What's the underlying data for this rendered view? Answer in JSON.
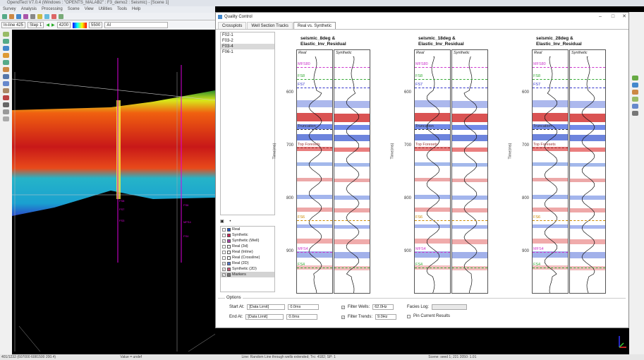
{
  "app": {
    "title": "OpendTect V7.0.4 (Windows : \"OPENTS_MALAB2\" : F3_demo2 : Seismic) - [Scene 1]",
    "menu": [
      "Survey",
      "Analysis",
      "Processing",
      "Scene",
      "View",
      "Utilities",
      "Tools",
      "Help"
    ],
    "toolbar": {
      "inline_label": "In-line 425",
      "steps_label": "Step 1",
      "range_start": "4200",
      "range_end": "5500",
      "attribute": "AI"
    }
  },
  "status": {
    "coords": "401/1232   (607000  6081500  200.4)",
    "value_label": "Value = undef",
    "mid_text": "Line: Random Line through wells extended; Trc: 4182; SP: 1",
    "right_text": "Scene: seed 1; 221  2050: 1.01"
  },
  "qc": {
    "title": "Quality Control",
    "window_buttons": {
      "minimize": "–",
      "maximize": "□",
      "close": "✕"
    },
    "tabs": [
      "Crossplots",
      "Well Section Tracks",
      "Real vs. Synthetic"
    ],
    "active_tab": 2,
    "wells": [
      {
        "name": "F02-1",
        "selected": false
      },
      {
        "name": "F03-2",
        "selected": false
      },
      {
        "name": "F03-4",
        "selected": true
      },
      {
        "name": "F06-1",
        "selected": false
      }
    ],
    "layer_controls": {
      "left": "▣",
      "right": "•"
    },
    "layers": [
      {
        "label": "Real",
        "checked": false,
        "color": "#2255cc"
      },
      {
        "label": "Synthetic",
        "checked": false,
        "color": "#cc2255"
      },
      {
        "label": "Synthetic (Well)",
        "checked": true,
        "color": "#aa44aa"
      },
      {
        "label": "Real (3d)",
        "checked": false,
        "color": "#ffffff"
      },
      {
        "label": "Real (Inline)",
        "checked": false,
        "color": "#ffffff"
      },
      {
        "label": "Real (Crossline)",
        "checked": false,
        "color": "#ffffff"
      },
      {
        "label": "Real (2D)",
        "checked": true,
        "color": "#5577cc"
      },
      {
        "label": "Synthetic (2D)",
        "checked": true,
        "color": "#cc5577"
      },
      {
        "label": "Markers",
        "checked": true,
        "color": "#777777",
        "selected": true
      }
    ],
    "panels": [
      {
        "title_line1": "seismic_8deg &",
        "title_line2": "Elastic_Inv_Residual",
        "real_label": "Real",
        "syn_label": "Synthetic"
      },
      {
        "title_line1": "seismic_18deg &",
        "title_line2": "Elastic_Inv_Residual",
        "real_label": "Real",
        "syn_label": "Synthetic"
      },
      {
        "title_line1": "seismic_28deg &",
        "title_line2": "Elastic_Inv_Residual",
        "real_label": "Real",
        "syn_label": "Synthetic"
      }
    ],
    "y_axis": {
      "label": "Time(ms)",
      "ticks": [
        "600",
        "700",
        "800",
        "900"
      ]
    },
    "markers": [
      {
        "name": "MFS80",
        "color": "#cc33cc"
      },
      {
        "name": "FS8",
        "color": "#33aa33"
      },
      {
        "name": "FS7",
        "color": "#3333cc"
      },
      {
        "name": "Truncation",
        "color": "#333333"
      },
      {
        "name": "Top Foresets",
        "color": "#993333"
      },
      {
        "name": "FS6",
        "color": "#cc8800"
      },
      {
        "name": "MFS4",
        "color": "#cc33cc"
      },
      {
        "name": "FS4",
        "color": "#33aa33"
      }
    ],
    "options": {
      "title": "Options",
      "start_at_label": "Start At:",
      "start_at_mode": "[Data Limit]",
      "start_at_value": "0.0ms",
      "end_at_label": "End At:",
      "end_at_mode": "[Data Limit]",
      "end_at_value": "0.0ms",
      "filter_wells_label": "Filter Wells:",
      "filter_wells_value": "62.0Hz",
      "filter_trends_label": "Filter Trends:",
      "filter_trends_value": "9.0Hz",
      "facies_log_label": "Facies Log:",
      "facies_log_value": "",
      "pin_label": "Pin Current Results"
    }
  },
  "scene3d": {
    "well_labels": [
      "FS8",
      "FS7",
      "FS6",
      "MFS4",
      "FS4",
      "FS3"
    ]
  }
}
